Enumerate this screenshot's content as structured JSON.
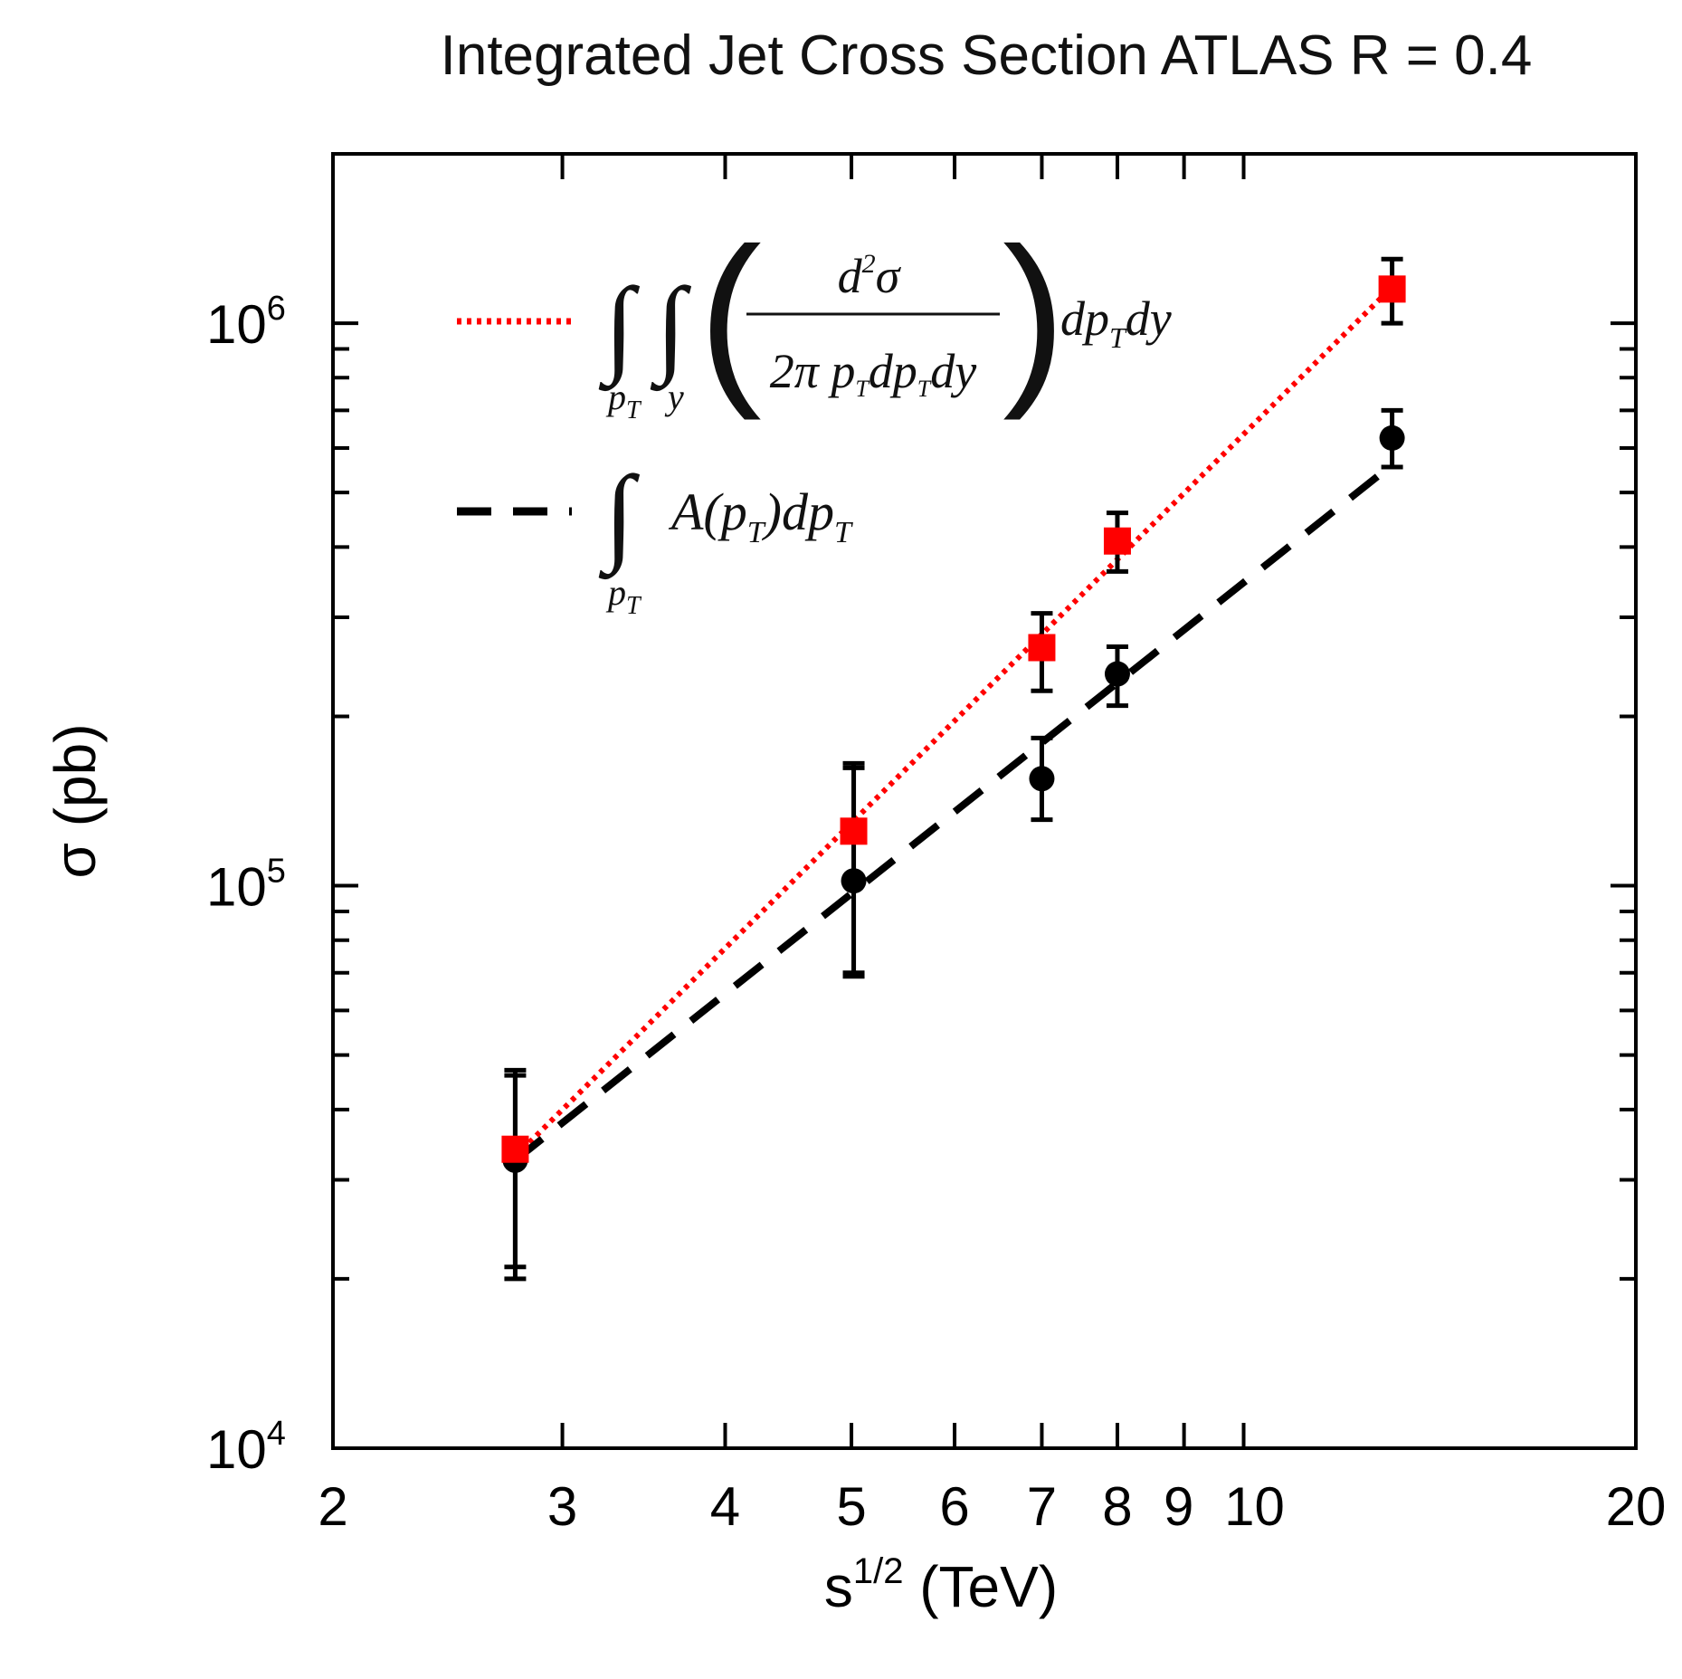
{
  "chart_data": {
    "type": "scatter",
    "title": "Integrated Jet Cross Section ATLAS R = 0.4",
    "xlabel": {
      "base": "s",
      "sup": "1/2",
      "unit": " (TeV)"
    },
    "ylabel": "σ (pb)",
    "xscale": "log",
    "yscale": "log",
    "xlim": [
      2,
      20
    ],
    "ylim": [
      10000,
      2000000
    ],
    "x_ticks": [
      {
        "value": 2,
        "label": "2"
      },
      {
        "value": 3,
        "label": "3"
      },
      {
        "value": 4,
        "label": "4"
      },
      {
        "value": 5,
        "label": "5"
      },
      {
        "value": 6,
        "label": "6"
      },
      {
        "value": 7,
        "label": "7"
      },
      {
        "value": 8,
        "label": "8"
      },
      {
        "value": 9,
        "label": "9"
      },
      {
        "value": 10,
        "label": "10"
      },
      {
        "value": 20,
        "label": "20"
      }
    ],
    "y_ticks": [
      {
        "value": 10000,
        "base": "10",
        "exp": "4"
      },
      {
        "value": 100000,
        "base": "10",
        "exp": "5"
      },
      {
        "value": 1000000,
        "base": "10",
        "exp": "6"
      }
    ],
    "legend_position": "top-left",
    "series": [
      {
        "name": "double integral of d²σ/(2π pT dpT dy) dpT dy",
        "marker": "square",
        "color": "#ff0000",
        "x": [
          2.76,
          5.02,
          7,
          8,
          13
        ],
        "y": [
          34000,
          125000,
          265000,
          410000,
          1150000
        ],
        "err_low": [
          21000,
          70000,
          222000,
          362000,
          1000000
        ],
        "err_high": [
          47000,
          165000,
          305000,
          460000,
          1300000
        ]
      },
      {
        "name": "integral of A(pT) dpT",
        "marker": "circle",
        "color": "#000000",
        "x": [
          2.76,
          5.02,
          7,
          8,
          13
        ],
        "y": [
          32500,
          102000,
          155000,
          238000,
          625000
        ],
        "err_low": [
          20000,
          69000,
          131000,
          209000,
          555000
        ],
        "err_high": [
          46000,
          162000,
          183000,
          266000,
          700000
        ]
      }
    ],
    "fits": [
      {
        "name": "red dotted fit",
        "style": "dotted",
        "color": "#ff0000",
        "x": [
          2.76,
          13
        ],
        "y": [
          33000,
          1160000
        ]
      },
      {
        "name": "black dashed fit",
        "style": "dashed",
        "color": "#000000",
        "x": [
          2.76,
          13
        ],
        "y": [
          32500,
          560000
        ]
      }
    ],
    "legend": {
      "red": {
        "l1": "p",
        "l1sub": "T",
        "l2": "y",
        "num_d": "d",
        "num_sup": "2",
        "num_sig": "σ",
        "den_a": "2π p",
        "den_sub1": "T",
        "den_b": "dp",
        "den_sub2": "T",
        "den_c": "dy",
        "tail_a": "dp",
        "tail_sub": "T",
        "tail_b": "dy"
      },
      "black": {
        "l1": "p",
        "l1sub": "T",
        "a": "A(p",
        "sub1": "T",
        "b": ")dp",
        "sub2": "T"
      }
    }
  }
}
